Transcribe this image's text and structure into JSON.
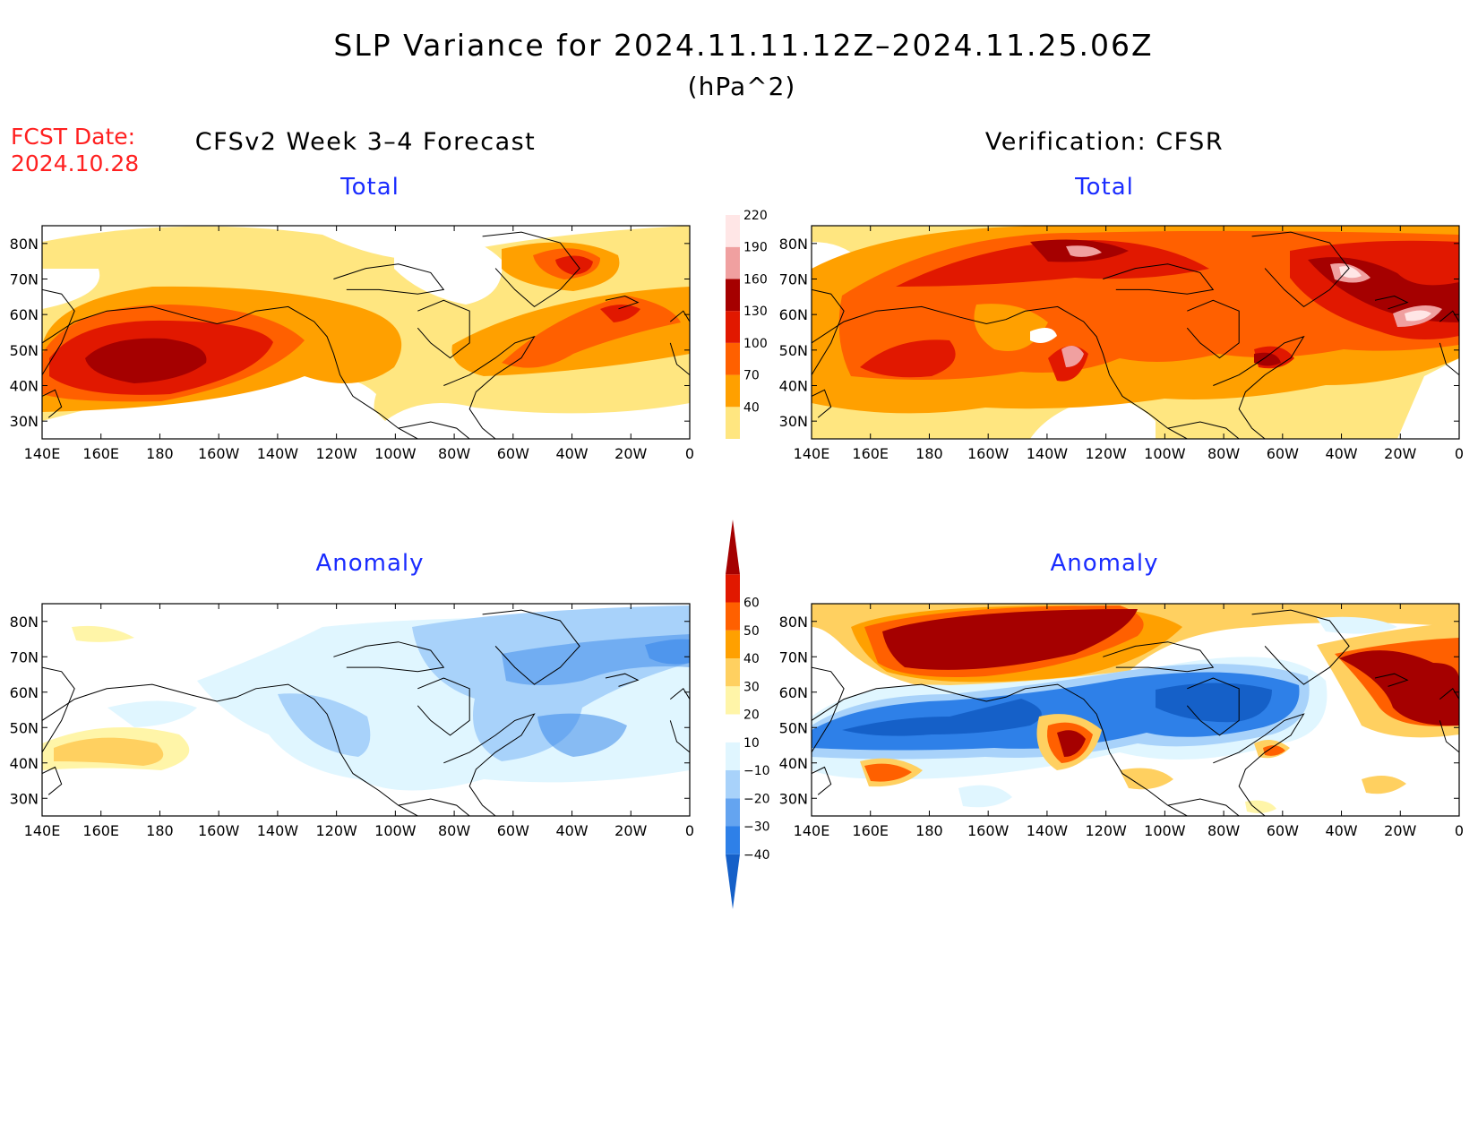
{
  "title": "SLP Variance for 2024.11.11.12Z–2024.11.25.06Z",
  "units": "(hPa^2)",
  "fcst_date_label": "FCST Date:",
  "fcst_date": "2024.10.28",
  "left_header": "CFSv2 Week 3–4 Forecast",
  "right_header": "Verification: CFSR",
  "panels": [
    {
      "id": "forecast-total",
      "label": "Total"
    },
    {
      "id": "verification-total",
      "label": "Total"
    },
    {
      "id": "forecast-anomaly",
      "label": "Anomaly"
    },
    {
      "id": "verification-anomaly",
      "label": "Anomaly"
    }
  ],
  "lat_ticks": [
    "80N",
    "70N",
    "60N",
    "50N",
    "40N",
    "30N"
  ],
  "lon_ticks": [
    "140E",
    "160E",
    "180",
    "160W",
    "140W",
    "120W",
    "100W",
    "80W",
    "60W",
    "40W",
    "20W",
    "0"
  ],
  "total_colorbar": {
    "levels": [
      "40",
      "70",
      "100",
      "130",
      "160",
      "190",
      "220"
    ],
    "colors": [
      "#ffe680",
      "#ffa000",
      "#ff6000",
      "#e11800",
      "#a50000",
      "#f0a0a0",
      "#ffe6e6"
    ]
  },
  "anomaly_colorbar": {
    "levels": [
      "−40",
      "−30",
      "−20",
      "−10",
      "10",
      "20",
      "30",
      "40",
      "50",
      "60"
    ],
    "colors": [
      "#1560c8",
      "#2e80e8",
      "#64a4f0",
      "#a8d2fa",
      "#e0f6ff",
      "#ffffff",
      "#fff5a8",
      "#ffd060",
      "#ffa000",
      "#ff6000",
      "#e11800",
      "#a50000"
    ]
  },
  "colors": {
    "total_bg": "#ffe680",
    "anomaly_blue": "#2e80e8",
    "anomaly_red": "#a50000",
    "label_blue": "#1a2cff",
    "label_red": "#ff2020"
  }
}
